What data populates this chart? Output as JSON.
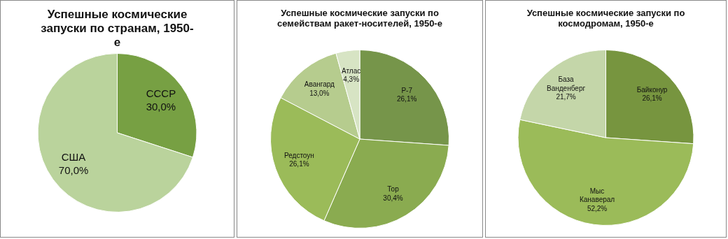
{
  "chart_data": [
    {
      "type": "pie",
      "title": "Успешные космические запуски по странам, 1950-е",
      "categories": [
        "СССР",
        "США"
      ],
      "values": [
        30.0,
        70.0
      ],
      "value_labels": [
        "30,0%",
        "70,0%"
      ],
      "colors": [
        "#77a043",
        "#bad39c"
      ]
    },
    {
      "type": "pie",
      "title": "Успешные космические запуски  по семействам ракет-носителей, 1950-е",
      "categories": [
        "Р-7",
        "Тор",
        "Редстоун",
        "Авангард",
        "Атлас"
      ],
      "values": [
        26.1,
        30.4,
        26.1,
        13.0,
        4.3
      ],
      "value_labels": [
        "26,1%",
        "30,4%",
        "26,1%",
        "13,0%",
        "4,3%"
      ],
      "colors": [
        "#76954a",
        "#8aab50",
        "#9bbb59",
        "#b6cc8e",
        "#d7e4c4"
      ]
    },
    {
      "type": "pie",
      "title": "Успешные космические запуски по космодромам, 1950-е",
      "categories": [
        "Байконур",
        "Мыс Канаверал",
        "База Ванденберг"
      ],
      "values": [
        26.1,
        52.2,
        21.7
      ],
      "value_labels": [
        "26,1%",
        "52,2%",
        "21,7%"
      ],
      "colors": [
        "#77953f",
        "#9bbb59",
        "#c4d6a9"
      ]
    }
  ]
}
